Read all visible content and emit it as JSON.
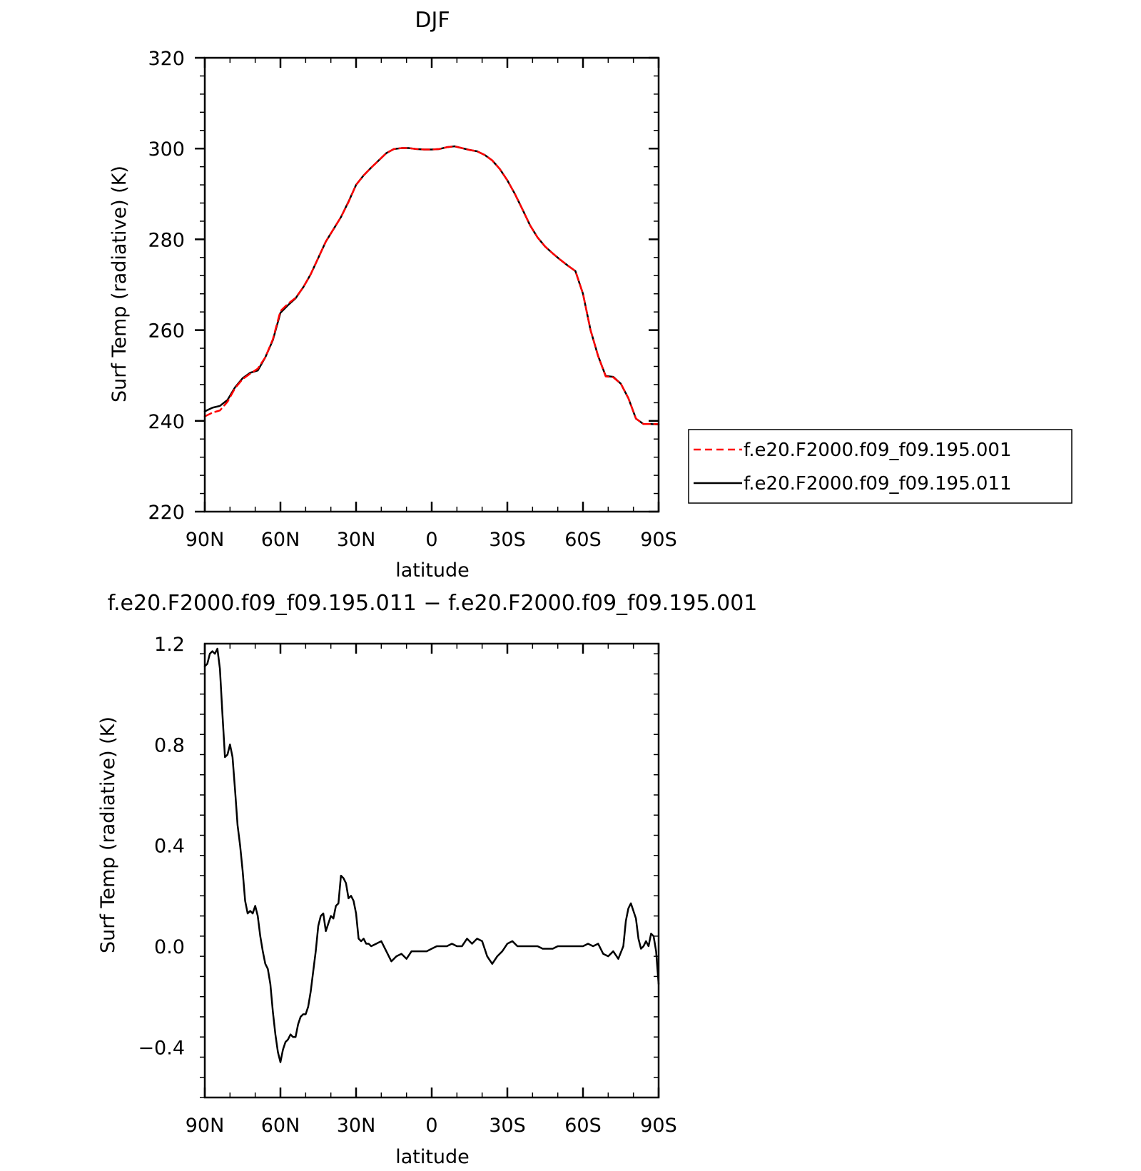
{
  "colors": {
    "series_1": "#ff0000",
    "series_2": "#000000",
    "axes": "#000000",
    "background": "#ffffff"
  },
  "chart_data": [
    {
      "type": "line",
      "title": "DJF",
      "xlabel": "latitude",
      "ylabel": "Surf Temp (radiative) (K)",
      "xlim": [
        90,
        -90
      ],
      "ylim": [
        220,
        320
      ],
      "x_ticks": [
        90,
        60,
        30,
        0,
        -30,
        -60,
        -90
      ],
      "x_tick_labels": [
        "90N",
        "60N",
        "30N",
        "0",
        "30S",
        "60S",
        "90S"
      ],
      "y_ticks": [
        220,
        240,
        260,
        280,
        300,
        320
      ],
      "y_tick_labels": [
        "220",
        "240",
        "260",
        "280",
        "300",
        "320"
      ],
      "grid": false,
      "legend": {
        "placement": "right, outside",
        "entries": [
          "f.e20.F2000.f09_f09.195.001",
          "f.e20.F2000.f09_f09.195.011"
        ]
      },
      "series": [
        {
          "name": "f.e20.F2000.f09_f09.195.001",
          "color": "#ff0000",
          "style": "dashed",
          "x": [
            90,
            87,
            84,
            81,
            78,
            75,
            72,
            69,
            66,
            63,
            60,
            57,
            54,
            51,
            48,
            45,
            42,
            39,
            36,
            33,
            30,
            27,
            24,
            21,
            18,
            15,
            12,
            9,
            6,
            3,
            0,
            -3,
            -6,
            -9,
            -12,
            -15,
            -18,
            -21,
            -24,
            -27,
            -30,
            -33,
            -36,
            -39,
            -42,
            -45,
            -48,
            -51,
            -54,
            -57,
            -60,
            -63,
            -66,
            -69,
            -72,
            -75,
            -78,
            -81,
            -84,
            -87,
            -90
          ],
          "y": [
            241.0,
            241.8,
            242.3,
            244.2,
            247.2,
            249.2,
            250.4,
            251.5,
            254.0,
            258.0,
            264.2,
            265.8,
            267.1,
            269.4,
            272.3,
            275.9,
            279.5,
            282.2,
            284.9,
            288.2,
            292.0,
            294.1,
            295.8,
            297.4,
            299.0,
            299.9,
            300.1,
            300.1,
            299.9,
            299.8,
            299.8,
            299.9,
            300.3,
            300.5,
            300.1,
            299.7,
            299.4,
            298.6,
            297.4,
            295.5,
            293.0,
            290.0,
            286.6,
            283.1,
            280.4,
            278.4,
            276.9,
            275.5,
            274.2,
            273.0,
            268.0,
            260.0,
            254.3,
            249.8,
            249.6,
            248.2,
            245.0,
            240.5,
            239.3,
            239.3,
            239.3
          ]
        },
        {
          "name": "f.e20.F2000.f09_f09.195.011",
          "color": "#000000",
          "style": "solid",
          "x": [
            90,
            87,
            84,
            81,
            78,
            75,
            72,
            69,
            66,
            63,
            60,
            57,
            54,
            51,
            48,
            45,
            42,
            39,
            36,
            33,
            30,
            27,
            24,
            21,
            18,
            15,
            12,
            9,
            6,
            3,
            0,
            -3,
            -6,
            -9,
            -12,
            -15,
            -18,
            -21,
            -24,
            -27,
            -30,
            -33,
            -36,
            -39,
            -42,
            -45,
            -48,
            -51,
            -54,
            -57,
            -60,
            -63,
            -66,
            -69,
            -72,
            -75,
            -78,
            -81,
            -84,
            -87,
            -90
          ],
          "y": [
            242.1,
            242.9,
            243.3,
            244.6,
            247.4,
            249.4,
            250.6,
            251.1,
            254.0,
            257.8,
            263.8,
            265.5,
            267.0,
            269.4,
            272.3,
            275.9,
            279.5,
            282.2,
            284.9,
            288.3,
            292.0,
            294.1,
            295.8,
            297.4,
            299.0,
            299.9,
            300.1,
            300.1,
            299.9,
            299.8,
            299.8,
            299.9,
            300.3,
            300.5,
            300.1,
            299.7,
            299.4,
            298.6,
            297.4,
            295.5,
            293.0,
            290.0,
            286.6,
            283.1,
            280.4,
            278.4,
            276.9,
            275.5,
            274.2,
            273.0,
            268.0,
            260.0,
            254.3,
            249.9,
            249.7,
            248.2,
            245.0,
            240.5,
            239.3,
            239.3,
            239.2
          ]
        }
      ]
    },
    {
      "type": "line",
      "title": "f.e20.F2000.f09_f09.195.011 − f.e20.F2000.f09_f09.195.001",
      "xlabel": "latitude",
      "ylabel": "Surf Temp (radiative) (K)",
      "xlim": [
        90,
        -90
      ],
      "ylim": [
        -0.6,
        1.2
      ],
      "x_ticks": [
        90,
        60,
        30,
        0,
        -30,
        -60,
        -90
      ],
      "x_tick_labels": [
        "90N",
        "60N",
        "30N",
        "0",
        "30S",
        "60S",
        "90S"
      ],
      "y_ticks": [
        -0.4,
        0.0,
        0.4,
        0.8,
        1.2
      ],
      "y_tick_labels": [
        "−0.4",
        "0.0",
        "0.4",
        "0.8",
        "1.2"
      ],
      "grid": false,
      "series": [
        {
          "color": "#000000",
          "style": "solid",
          "x": [
            90,
            89,
            88,
            87,
            86,
            85,
            84,
            83,
            82,
            81,
            80,
            79,
            78,
            77,
            76,
            75,
            74,
            73,
            72,
            71,
            70,
            69,
            68,
            67,
            66,
            65,
            64,
            63,
            62,
            61,
            60,
            59,
            58,
            57,
            56,
            55,
            54,
            53,
            52,
            51,
            50,
            49,
            48,
            47,
            46,
            45,
            44,
            43,
            42,
            41,
            40,
            39,
            38,
            37,
            36,
            35,
            34,
            33,
            32,
            31,
            30,
            29,
            28,
            27,
            26,
            25,
            24,
            22,
            20,
            18,
            16,
            14,
            12,
            10,
            8,
            6,
            4,
            2,
            0,
            -2,
            -4,
            -6,
            -8,
            -10,
            -12,
            -14,
            -16,
            -18,
            -20,
            -22,
            -24,
            -26,
            -28,
            -30,
            -32,
            -34,
            -36,
            -38,
            -40,
            -42,
            -44,
            -46,
            -48,
            -50,
            -52,
            -54,
            -56,
            -58,
            -60,
            -62,
            -64,
            -66,
            -68,
            -70,
            -72,
            -74,
            -76,
            -77,
            -78,
            -79,
            -80,
            -81,
            -82,
            -83,
            -84,
            -85,
            -86,
            -87,
            -88,
            -89,
            -90
          ],
          "y": [
            1.11,
            1.12,
            1.16,
            1.17,
            1.16,
            1.18,
            1.1,
            0.92,
            0.75,
            0.76,
            0.8,
            0.75,
            0.62,
            0.48,
            0.4,
            0.3,
            0.18,
            0.13,
            0.14,
            0.13,
            0.16,
            0.12,
            0.04,
            -0.02,
            -0.07,
            -0.09,
            -0.15,
            -0.26,
            -0.35,
            -0.42,
            -0.46,
            -0.41,
            -0.38,
            -0.37,
            -0.35,
            -0.36,
            -0.36,
            -0.31,
            -0.28,
            -0.27,
            -0.27,
            -0.24,
            -0.18,
            -0.1,
            -0.02,
            0.08,
            0.12,
            0.13,
            0.06,
            0.09,
            0.12,
            0.11,
            0.16,
            0.17,
            0.28,
            0.27,
            0.25,
            0.19,
            0.2,
            0.18,
            0.13,
            0.03,
            0.02,
            0.03,
            0.01,
            0.01,
            0.0,
            0.01,
            0.02,
            -0.02,
            -0.06,
            -0.04,
            -0.03,
            -0.05,
            -0.02,
            -0.02,
            -0.02,
            -0.02,
            -0.01,
            0.0,
            0.0,
            0.0,
            0.01,
            0.0,
            0.0,
            0.03,
            0.01,
            0.03,
            0.02,
            -0.04,
            -0.07,
            -0.04,
            -0.02,
            0.01,
            0.02,
            0.0,
            0.0,
            0.0,
            0.0,
            0.0,
            -0.01,
            -0.01,
            -0.01,
            0.0,
            0.0,
            0.0,
            0.0,
            0.0,
            0.0,
            0.01,
            0.0,
            0.01,
            -0.03,
            -0.04,
            -0.02,
            -0.05,
            0.0,
            0.1,
            0.15,
            0.17,
            0.14,
            0.11,
            0.03,
            -0.01,
            0.0,
            0.02,
            0.0,
            0.05,
            0.04,
            -0.02,
            -0.15
          ]
        }
      ]
    }
  ]
}
